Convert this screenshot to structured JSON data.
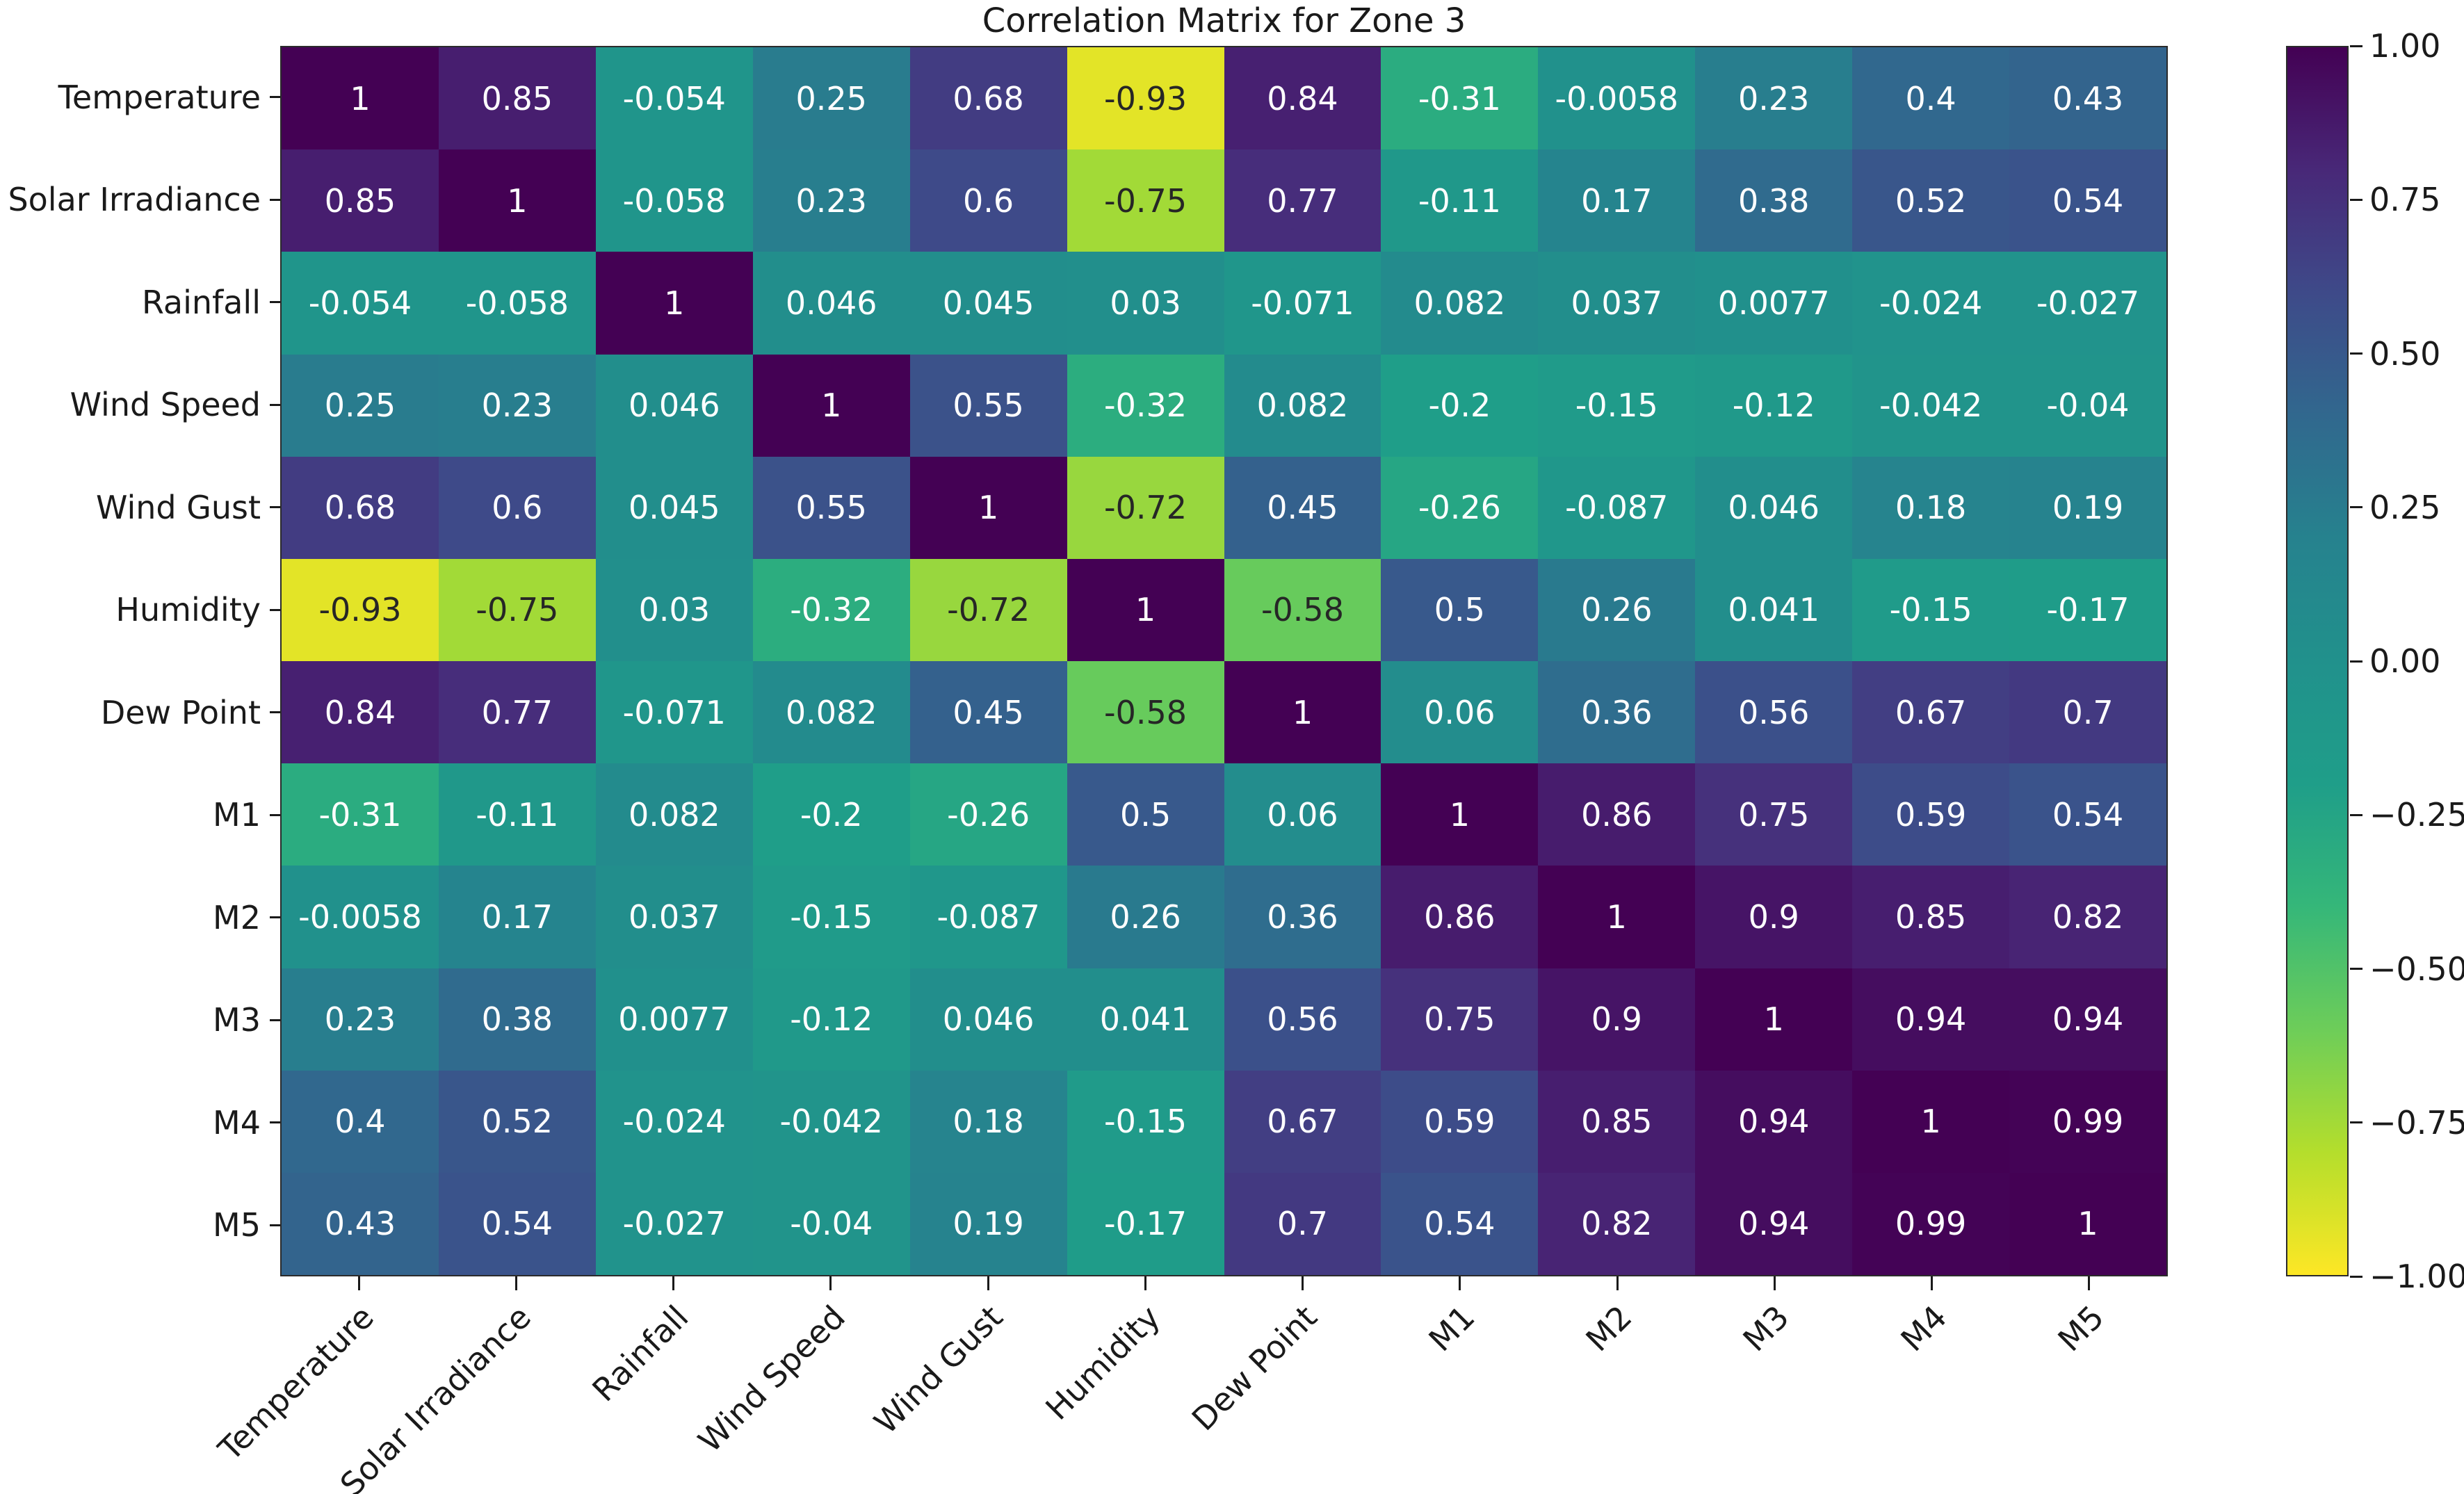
{
  "chart_data": {
    "type": "heatmap",
    "title": "Correlation Matrix for Zone 3",
    "categories": [
      "Temperature",
      "Solar Irradiance",
      "Rainfall",
      "Wind Speed",
      "Wind Gust",
      "Humidity",
      "Dew Point",
      "M1",
      "M2",
      "M3",
      "M4",
      "M5"
    ],
    "matrix": [
      [
        1,
        0.85,
        -0.054,
        0.25,
        0.68,
        -0.93,
        0.84,
        -0.31,
        -0.0058,
        0.23,
        0.4,
        0.43
      ],
      [
        0.85,
        1,
        -0.058,
        0.23,
        0.6,
        -0.75,
        0.77,
        -0.11,
        0.17,
        0.38,
        0.52,
        0.54
      ],
      [
        -0.054,
        -0.058,
        1,
        0.046,
        0.045,
        0.03,
        -0.071,
        0.082,
        0.037,
        0.0077,
        -0.024,
        -0.027
      ],
      [
        0.25,
        0.23,
        0.046,
        1,
        0.55,
        -0.32,
        0.082,
        -0.2,
        -0.15,
        -0.12,
        -0.042,
        -0.04
      ],
      [
        0.68,
        0.6,
        0.045,
        0.55,
        1,
        -0.72,
        0.45,
        -0.26,
        -0.087,
        0.046,
        0.18,
        0.19
      ],
      [
        -0.93,
        -0.75,
        0.03,
        -0.32,
        -0.72,
        1,
        -0.58,
        0.5,
        0.26,
        0.041,
        -0.15,
        -0.17
      ],
      [
        0.84,
        0.77,
        -0.071,
        0.082,
        0.45,
        -0.58,
        1,
        0.06,
        0.36,
        0.56,
        0.67,
        0.7
      ],
      [
        -0.31,
        -0.11,
        0.082,
        -0.2,
        -0.26,
        0.5,
        0.06,
        1,
        0.86,
        0.75,
        0.59,
        0.54
      ],
      [
        -0.0058,
        0.17,
        0.037,
        -0.15,
        -0.087,
        0.26,
        0.36,
        0.86,
        1,
        0.9,
        0.85,
        0.82
      ],
      [
        0.23,
        0.38,
        0.0077,
        -0.12,
        0.046,
        0.041,
        0.56,
        0.75,
        0.9,
        1,
        0.94,
        0.94
      ],
      [
        0.4,
        0.52,
        -0.024,
        -0.042,
        0.18,
        -0.15,
        0.67,
        0.59,
        0.85,
        0.94,
        1,
        0.99
      ],
      [
        0.43,
        0.54,
        -0.027,
        -0.04,
        0.19,
        -0.17,
        0.7,
        0.54,
        0.82,
        0.94,
        0.99,
        1
      ]
    ],
    "vmin": -1,
    "vmax": 1,
    "cell_label_sig_figs": 2,
    "x_tick_rotation_deg": 45,
    "grid": false,
    "colormap": {
      "name": "viridis reversed",
      "stops": [
        "#440154",
        "#482878",
        "#3e4a89",
        "#31688e",
        "#26828e",
        "#21918c",
        "#1f9e89",
        "#35b779",
        "#6dcd59",
        "#b4de2c",
        "#fde725"
      ]
    },
    "colorbar": {
      "position": "right",
      "tick_values": [
        1,
        0.75,
        0.5,
        0.25,
        0,
        -0.25,
        -0.5,
        -0.75,
        -1
      ],
      "tick_labels": [
        "1.00",
        "0.75",
        "0.50",
        "0.25",
        "0.00",
        "−0.25",
        "−0.50",
        "−0.75",
        "−1.00"
      ]
    },
    "annotation_colors": {
      "on_dark": "#ffffff",
      "on_light": "#262626"
    },
    "axis_text_color": "#1a1a1a",
    "background": "#ffffff"
  }
}
